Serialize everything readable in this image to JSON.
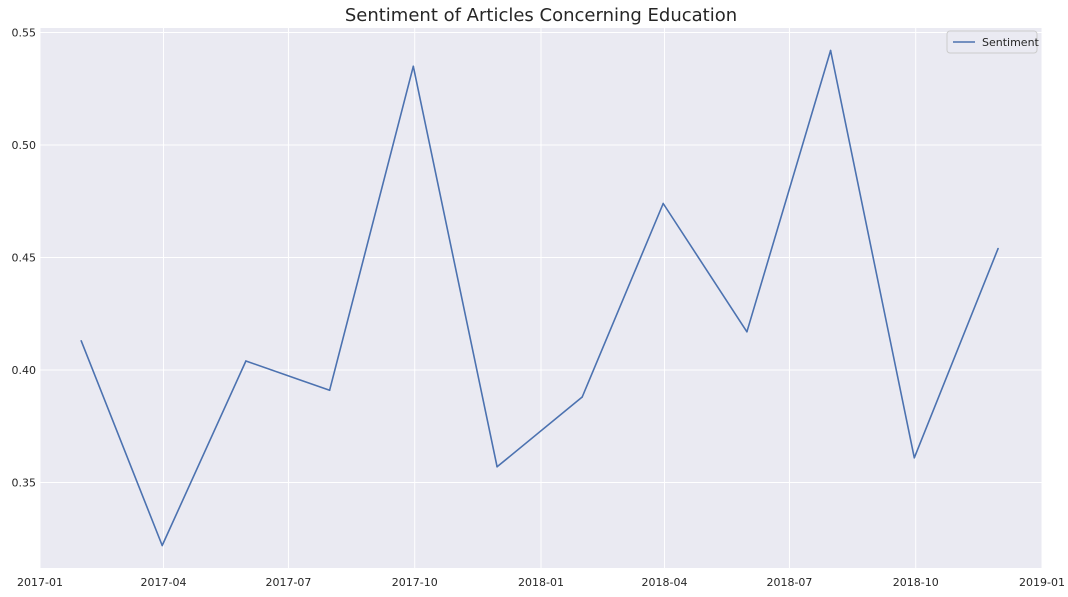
{
  "chart_data": {
    "type": "line",
    "title": "Sentiment of Articles Concerning Education",
    "xlabel": "",
    "ylabel": "",
    "x_axis_type": "date",
    "x": [
      "2017-01-31",
      "2017-03-31",
      "2017-05-31",
      "2017-07-31",
      "2017-09-30",
      "2017-11-30",
      "2018-01-31",
      "2018-03-31",
      "2018-05-31",
      "2018-07-31",
      "2018-09-30",
      "2018-11-30"
    ],
    "series": [
      {
        "name": "Sentiment",
        "color": "#4c72b0",
        "values": [
          0.413,
          0.322,
          0.404,
          0.391,
          0.535,
          0.357,
          0.388,
          0.474,
          0.417,
          0.542,
          0.361,
          0.454
        ]
      }
    ],
    "xlim": [
      "2017-01-01",
      "2019-01-01"
    ],
    "ylim": [
      0.312,
      0.552
    ],
    "x_ticks": [
      "2017-01",
      "2017-04",
      "2017-07",
      "2017-10",
      "2018-01",
      "2018-04",
      "2018-07",
      "2018-10",
      "2019-01"
    ],
    "y_ticks": [
      "0.35",
      "0.40",
      "0.45",
      "0.50",
      "0.55"
    ],
    "grid": true,
    "legend_position": "top-right",
    "background_color": "#eaeaf2",
    "grid_color": "#ffffff"
  }
}
